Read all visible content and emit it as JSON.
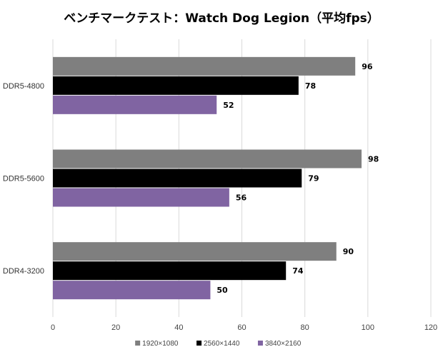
{
  "chart_data": {
    "type": "bar",
    "orientation": "horizontal",
    "title": "ベンチマークテスト：Watch Dog Legion（平均fps）",
    "categories": [
      "DDR5-4800",
      "DDR5-5600",
      "DDR4-3200"
    ],
    "series": [
      {
        "name": "1920×1080",
        "color": "#7f7f7f",
        "values": [
          96,
          98,
          90
        ]
      },
      {
        "name": "2560×1440",
        "color": "#000000",
        "values": [
          78,
          79,
          74
        ]
      },
      {
        "name": "3840×2160",
        "color": "#8064a2",
        "values": [
          52,
          56,
          50
        ]
      }
    ],
    "xlim": [
      0,
      120
    ],
    "xticks": [
      "0",
      "20",
      "40",
      "60",
      "80",
      "100",
      "120"
    ],
    "grid": true,
    "legend_position": "bottom"
  }
}
